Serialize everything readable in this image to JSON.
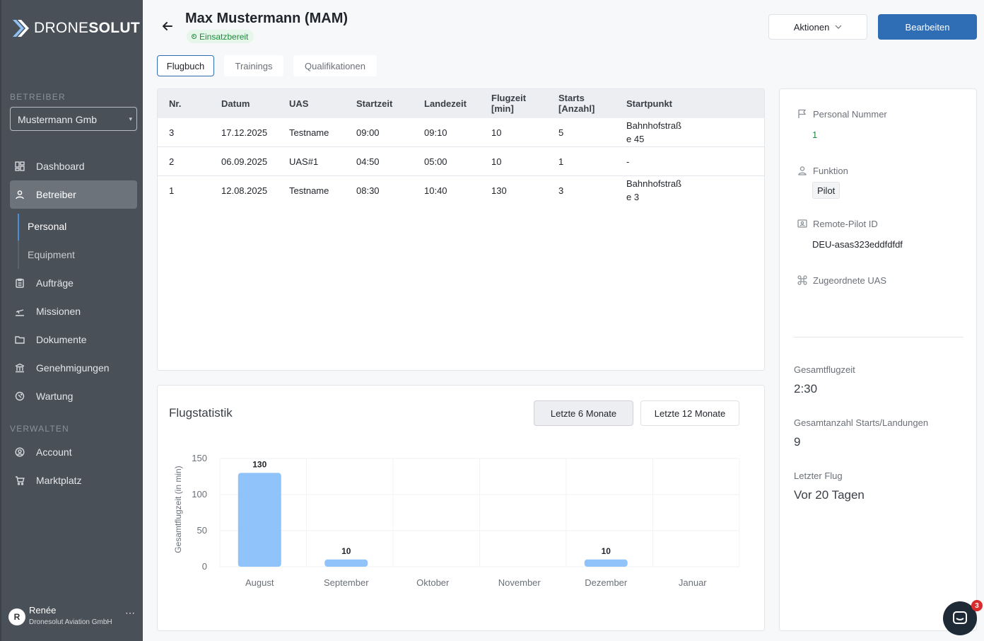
{
  "brand": {
    "name_light": "DRONE",
    "name_bold": "SOLUT"
  },
  "sidebar": {
    "section_operator": "BETREIBER",
    "org_select": "Mustermann Gmb",
    "items": [
      {
        "label": "Dashboard",
        "icon": "dashboard-icon"
      },
      {
        "label": "Betreiber",
        "icon": "user-icon"
      },
      {
        "label": "Aufträge",
        "icon": "clipboard-icon"
      },
      {
        "label": "Missionen",
        "icon": "takeoff-icon"
      },
      {
        "label": "Dokumente",
        "icon": "folder-icon"
      },
      {
        "label": "Genehmigungen",
        "icon": "bank-icon"
      },
      {
        "label": "Wartung",
        "icon": "wrench-icon"
      }
    ],
    "sub_items": [
      {
        "label": "Personal"
      },
      {
        "label": "Equipment"
      }
    ],
    "section_manage": "VERWALTEN",
    "manage_items": [
      {
        "label": "Account",
        "icon": "account-icon"
      },
      {
        "label": "Marktplatz",
        "icon": "cart-icon"
      }
    ],
    "user": {
      "initial": "R",
      "name": "Renée",
      "org": "Dronesolut Aviation GmbH",
      "more": "⋯"
    }
  },
  "header": {
    "title": "Max Mustermann (MAM)",
    "status": "Einsatzbereit",
    "actions_label": "Aktionen",
    "edit_label": "Bearbeiten"
  },
  "tabs": [
    {
      "label": "Flugbuch",
      "active": true
    },
    {
      "label": "Trainings",
      "active": false
    },
    {
      "label": "Qualifikationen",
      "active": false
    }
  ],
  "logbook": {
    "columns": [
      "Nr.",
      "Datum",
      "UAS",
      "Startzeit",
      "Landezeit",
      "Flugzeit\n[min]",
      "Starts\n[Anzahl]",
      "Startpunkt"
    ],
    "col_flugzeit": [
      "Flugzeit",
      "[min]"
    ],
    "col_starts": [
      "Starts",
      "[Anzahl]"
    ],
    "rows": [
      {
        "nr": "3",
        "datum": "17.12.2025",
        "uas": "Testname",
        "start": "09:00",
        "lande": "09:10",
        "flugzeit": "10",
        "starts": "5",
        "startpunkt": [
          "Bahnhofstraß",
          "e 45"
        ]
      },
      {
        "nr": "2",
        "datum": "06.09.2025",
        "uas": "UAS#1",
        "start": "04:50",
        "lande": "05:00",
        "flugzeit": "10",
        "starts": "1",
        "startpunkt": [
          "-",
          ""
        ]
      },
      {
        "nr": "1",
        "datum": "12.08.2025",
        "uas": "Testname",
        "start": "08:30",
        "lande": "10:40",
        "flugzeit": "130",
        "starts": "3",
        "startpunkt": [
          "Bahnhofstraß",
          "e 3"
        ]
      }
    ]
  },
  "stats": {
    "title": "Flugstatistik",
    "range_6": "Letzte 6 Monate",
    "range_12": "Letzte 12 Monate"
  },
  "chart_data": {
    "type": "bar",
    "categories": [
      "August",
      "September",
      "Oktober",
      "November",
      "Dezember",
      "Januar"
    ],
    "values": [
      130,
      10,
      0,
      0,
      10,
      0
    ],
    "ylabel": "Gesamtflugzeit (in min)",
    "ylim": [
      0,
      150
    ],
    "yticks": [
      0,
      50,
      100,
      150
    ],
    "data_labels": [
      "130",
      "10",
      "",
      "",
      "10",
      ""
    ],
    "bar_color": "#90c3f9",
    "grid": true
  },
  "details": {
    "personal_nummer_label": "Personal Nummer",
    "personal_nummer": "1",
    "funktion_label": "Funktion",
    "funktion": "Pilot",
    "remote_pilot_label": "Remote-Pilot ID",
    "remote_pilot": "DEU-asas323eddfdfdf",
    "uas_label": "Zugeordnete UAS",
    "gesamtflugzeit_label": "Gesamtflugzeit",
    "gesamtflugzeit": "2:30",
    "starts_label": "Gesamtanzahl Starts/Landungen",
    "starts": "9",
    "letzter_label": "Letzter Flug",
    "letzter": "Vor 20 Tagen"
  },
  "chat": {
    "count": "3"
  },
  "colors": {
    "primary": "#2f6db5",
    "sidebar": "#4a5058",
    "success": "#1f8a3f",
    "bar": "#90c3f9"
  }
}
